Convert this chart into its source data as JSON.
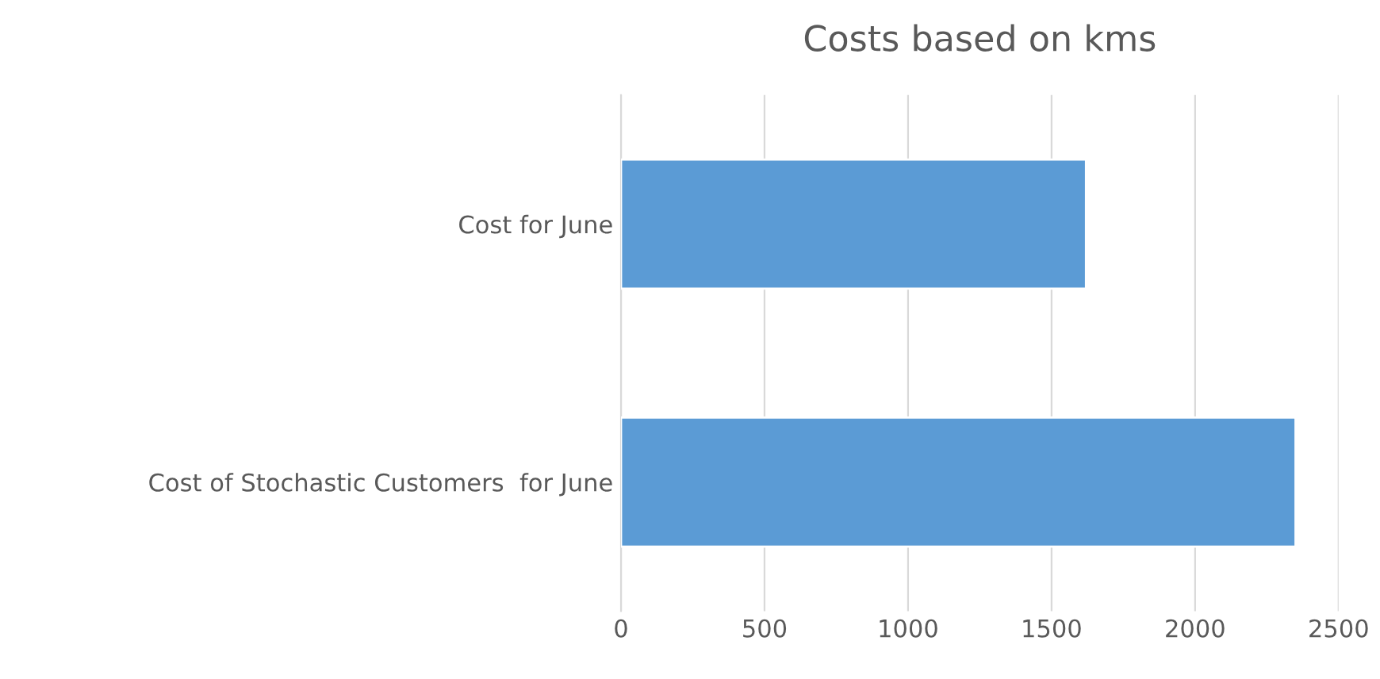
{
  "chart_data": {
    "type": "bar",
    "orientation": "horizontal",
    "title": "Costs based on kms",
    "categories": [
      "Cost for June",
      "Cost of Stochastic Customers  for June"
    ],
    "values": [
      1620,
      2350
    ],
    "color": "#5b9bd5",
    "xlim": [
      0,
      2500
    ],
    "xticks": [
      0,
      500,
      1000,
      1500,
      2000,
      2500
    ],
    "grid": "x",
    "legend": false
  }
}
